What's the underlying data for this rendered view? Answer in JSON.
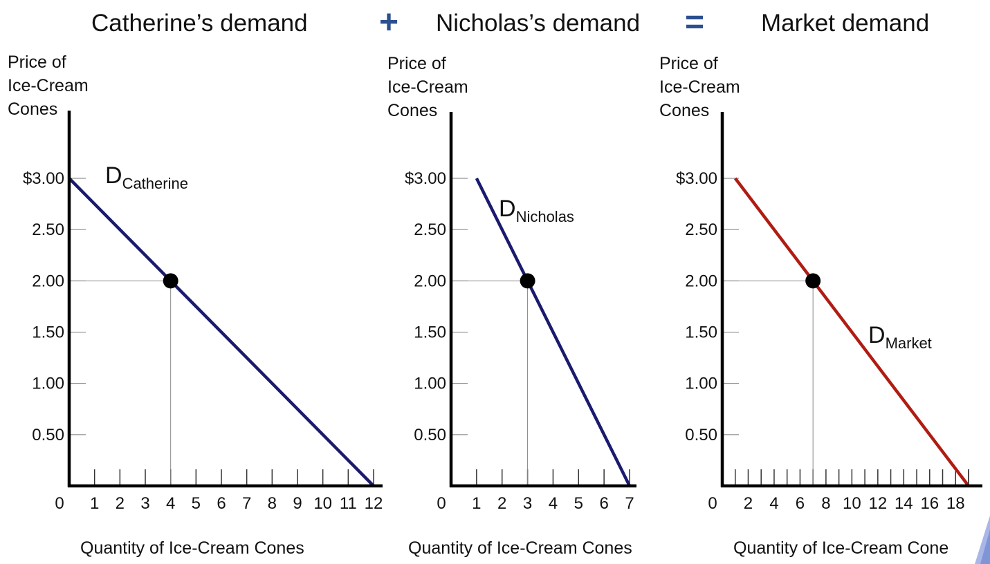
{
  "header": {
    "catherine_title": "Catherine’s demand",
    "plus": "+",
    "nicholas_title": "Nicholas’s  demand",
    "equals": "=",
    "market_title": "Market  demand"
  },
  "colors": {
    "catherine_line": "#1a1a6e",
    "nicholas_line": "#1a1a6e",
    "market_line": "#b01c12",
    "operator": "#2c4f8f"
  },
  "chart_data": [
    {
      "type": "line",
      "title": "Catherine’s demand",
      "ylabel": [
        "Price of",
        "Ice-Cream",
        "Cones"
      ],
      "xlabel": "Quantity of Ice-Cream Cones",
      "x_ticks": [
        "0",
        "1",
        "2",
        "3",
        "4",
        "5",
        "6",
        "7",
        "8",
        "9",
        "10",
        "11",
        "12"
      ],
      "x_tick_values": [
        0,
        1,
        2,
        3,
        4,
        5,
        6,
        7,
        8,
        9,
        10,
        11,
        12
      ],
      "y_ticks": [
        "$3.00",
        "2.50",
        "2.00",
        "1.50",
        "1.00",
        "0.50"
      ],
      "y_tick_values": [
        3.0,
        2.5,
        2.0,
        1.5,
        1.0,
        0.5
      ],
      "xlim": [
        0,
        12.6
      ],
      "ylim": [
        0,
        3.65
      ],
      "series": [
        {
          "label_main": "D",
          "label_sub": "Catherine",
          "x": [
            0,
            12
          ],
          "y": [
            3.0,
            0
          ]
        }
      ],
      "highlight_point": {
        "x": 4,
        "y": 2.0
      }
    },
    {
      "type": "line",
      "title": "Nicholas’s  demand",
      "ylabel": [
        "Price of",
        "Ice-Cream",
        "Cones"
      ],
      "xlabel": "Quantity of  Ice-Cream Cones",
      "x_ticks": [
        "0",
        "1",
        "2",
        "3",
        "4",
        "5",
        "6",
        "7"
      ],
      "x_tick_values": [
        0,
        1,
        2,
        3,
        4,
        5,
        6,
        7
      ],
      "y_ticks": [
        "$3.00",
        "2.50",
        "2.00",
        "1.50",
        "1.00",
        "0.50"
      ],
      "y_tick_values": [
        3.0,
        2.5,
        2.0,
        1.5,
        1.0,
        0.5
      ],
      "xlim": [
        0,
        7.3
      ],
      "ylim": [
        0,
        3.65
      ],
      "series": [
        {
          "label_main": "D",
          "label_sub": "Nicholas",
          "x": [
            1,
            7
          ],
          "y": [
            3.0,
            0
          ]
        }
      ],
      "highlight_point": {
        "x": 3,
        "y": 2.0
      }
    },
    {
      "type": "line",
      "title": "Market  demand",
      "ylabel": [
        "Price of",
        "Ice-Cream",
        "Cones"
      ],
      "xlabel": "Quantity of Ice-Cream Cone",
      "x_ticks": [
        "0",
        "2",
        "4",
        "6",
        "8",
        "10",
        "12",
        "14",
        "16",
        "18"
      ],
      "x_tick_values": [
        0,
        2,
        4,
        6,
        8,
        10,
        12,
        14,
        16,
        18
      ],
      "x_minor_step": 2,
      "y_ticks": [
        "$3.00",
        "2.50",
        "2.00",
        "1.50",
        "1.00",
        "0.50"
      ],
      "y_tick_values": [
        3.0,
        2.5,
        2.0,
        1.5,
        1.0,
        0.5
      ],
      "xlim": [
        0,
        20.5
      ],
      "ylim": [
        0,
        3.65
      ],
      "series": [
        {
          "label_main": "D",
          "label_sub": "Market",
          "x": [
            1,
            19
          ],
          "y": [
            3.0,
            0
          ]
        }
      ],
      "highlight_point": {
        "x": 7,
        "y": 2.0
      }
    }
  ]
}
